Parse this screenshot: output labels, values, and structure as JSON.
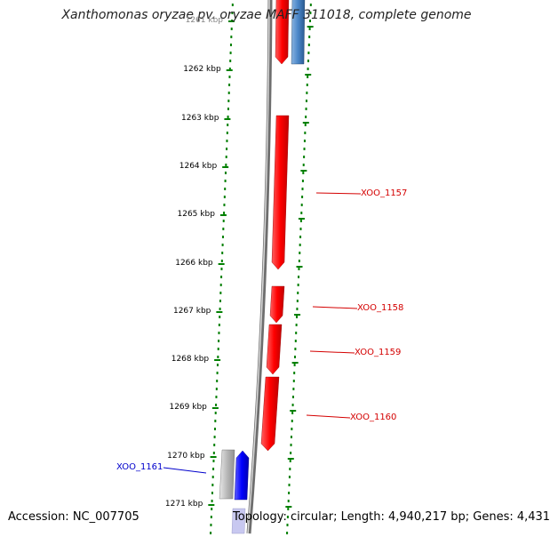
{
  "title": "Xanthomonas oryzae pv. oryzae MAFF 311018, complete genome",
  "footer": {
    "accession": "Accession: NC_007705",
    "summary": "Topology: circular; Length: 4,940,217 bp; Genes: 4,431"
  },
  "kbp_labels": [
    "1261 kbp",
    "1262 kbp",
    "1263 kbp",
    "1264 kbp",
    "1265 kbp",
    "1266 kbp",
    "1267 kbp",
    "1268 kbp",
    "1269 kbp",
    "1270 kbp",
    "1271 kbp"
  ],
  "genes": [
    {
      "name": "XOO_1157",
      "color": "#d40000",
      "strand": "forward"
    },
    {
      "name": "XOO_1158",
      "color": "#d40000",
      "strand": "forward"
    },
    {
      "name": "XOO_1159",
      "color": "#d40000",
      "strand": "forward"
    },
    {
      "name": "XOO_1160",
      "color": "#d40000",
      "strand": "forward"
    },
    {
      "name": "XOO_1161",
      "color": "#0000cc",
      "strand": "reverse"
    }
  ],
  "colors": {
    "forward_gene": "#ff0000",
    "reverse_gene": "#0000ff",
    "other_gene": "#4a86c8",
    "backbone": "#888888",
    "tick": "#008000"
  }
}
